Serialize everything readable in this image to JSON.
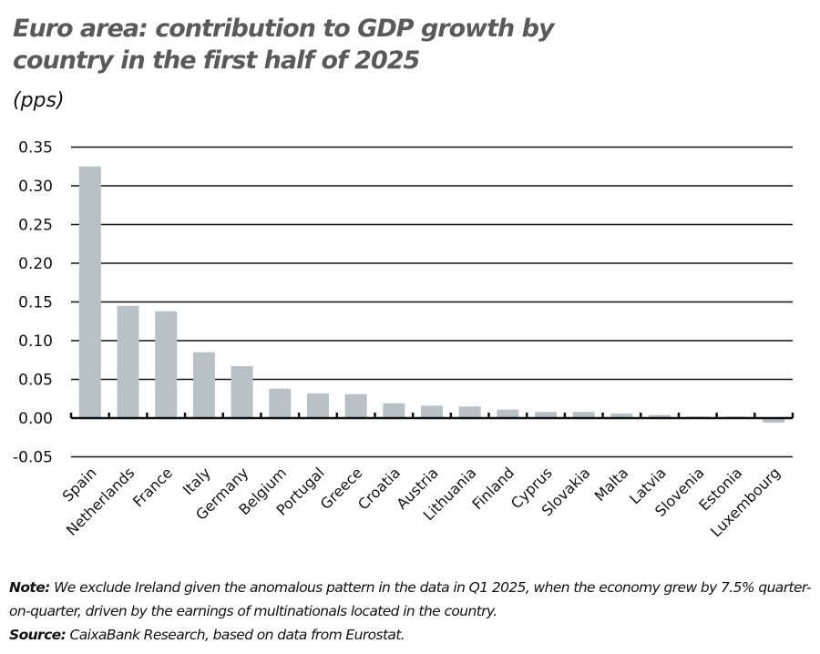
{
  "title": "Euro area: contribution to GDP growth by country in the first half of 2025",
  "unit": "(pps)",
  "note": {
    "note_label": "Note:",
    "note_text": " We exclude Ireland given the anomalous pattern in the data in Q1 2025, when the economy grew by 7.5% quarter-on-quarter, driven by the earnings of multinationals located in the country.",
    "source_label": "Source:",
    "source_text": " CaixaBank Research, based on data from Eurostat."
  },
  "colors": {
    "bar": "#b7c1c6",
    "grid": "#111111",
    "title": "#5a5a5a"
  },
  "chart_data": {
    "type": "bar",
    "title": "Euro area: contribution to GDP growth by country in the first half of 2025",
    "ylabel": "(pps)",
    "xlabel": "",
    "categories": [
      "Spain",
      "Netherlands",
      "France",
      "Italy",
      "Germany",
      "Belgium",
      "Portugal",
      "Greece",
      "Croatia",
      "Austria",
      "Lithuania",
      "Finland",
      "Cyprus",
      "Slovakia",
      "Malta",
      "Latvia",
      "Slovenia",
      "Estonia",
      "Luxembourg"
    ],
    "values": [
      0.325,
      0.145,
      0.138,
      0.085,
      0.067,
      0.038,
      0.032,
      0.031,
      0.019,
      0.016,
      0.015,
      0.011,
      0.008,
      0.008,
      0.006,
      0.004,
      0.002,
      0.002,
      -0.006
    ],
    "ylim": [
      -0.05,
      0.35
    ],
    "yticks": [
      "0.35",
      "0.30",
      "0.25",
      "0.20",
      "0.15",
      "0.10",
      "0.05",
      "0.00",
      "-0.05"
    ],
    "grid": true,
    "legend": null
  }
}
